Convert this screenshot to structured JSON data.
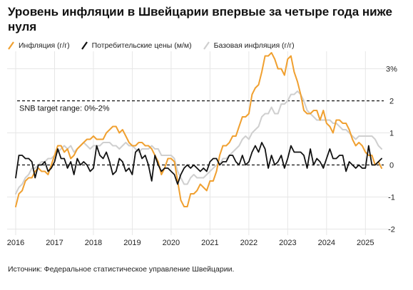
{
  "title": "Уровень инфляции в Швейцарии впервые за четыре года ниже нуля",
  "source": "Источник: Федеральное статистическое управление Швейцарии.",
  "colors": {
    "inflation": "#f0a030",
    "cpi": "#111111",
    "core": "#cfcfcf",
    "grid": "#e6e6e6",
    "zero": "#111111"
  },
  "chart_data": {
    "type": "line",
    "legend_placement": "top-left",
    "grid": true,
    "x_axis": {
      "ticks": [
        "2016",
        "2017",
        "2018",
        "2019",
        "2020",
        "2021",
        "2022",
        "2023",
        "2024",
        "2025"
      ],
      "range": [
        "2016-01",
        "2025-06"
      ]
    },
    "y_axis": {
      "position": "right",
      "range": [
        -2.1,
        3.5
      ],
      "ticks": [
        {
          "value": 3,
          "label": "3%"
        },
        {
          "value": 2,
          "label": "2"
        },
        {
          "value": 1,
          "label": "1"
        },
        {
          "value": 0,
          "label": "0"
        },
        {
          "value": -1,
          "label": "-1"
        },
        {
          "value": -2,
          "label": "-2"
        }
      ]
    },
    "annotations": [
      {
        "type": "dashed-line",
        "y": 2,
        "label": "SNB target range: 0%-2%"
      },
      {
        "type": "dashed-line",
        "y": 0
      }
    ],
    "series": [
      {
        "name": "Инфляция (г/г)",
        "start": "2016-01",
        "frequency": "monthly",
        "values": [
          -1.3,
          -0.9,
          -0.8,
          -0.5,
          -0.4,
          -0.4,
          -0.2,
          -0.1,
          -0.2,
          -0.2,
          -0.3,
          0.0,
          0.3,
          0.6,
          0.6,
          0.4,
          0.5,
          0.2,
          0.3,
          0.5,
          0.6,
          0.7,
          0.8,
          0.8,
          0.9,
          0.8,
          0.8,
          0.8,
          1.0,
          1.1,
          1.2,
          1.2,
          1.0,
          1.1,
          0.9,
          0.7,
          0.6,
          0.6,
          0.7,
          0.7,
          0.6,
          0.6,
          0.5,
          0.3,
          0.1,
          -0.3,
          -0.1,
          0.2,
          0.2,
          0.1,
          -0.5,
          -1.1,
          -1.3,
          -1.3,
          -0.9,
          -0.9,
          -0.8,
          -0.6,
          -0.7,
          -0.8,
          -0.5,
          -0.5,
          -0.2,
          0.3,
          0.6,
          0.6,
          0.7,
          0.9,
          0.9,
          1.2,
          1.5,
          1.5,
          1.6,
          2.2,
          2.4,
          2.5,
          2.9,
          3.4,
          3.4,
          3.5,
          3.3,
          3.0,
          3.0,
          2.8,
          3.3,
          3.4,
          2.9,
          2.6,
          2.2,
          1.7,
          1.6,
          1.6,
          1.7,
          1.7,
          1.4,
          1.7,
          1.3,
          1.2,
          1.0,
          1.4,
          1.4,
          1.3,
          1.3,
          1.1,
          0.8,
          0.6,
          0.7,
          0.6,
          0.4,
          0.3,
          0.3,
          0.0,
          0.1,
          -0.1
        ]
      },
      {
        "name": "Потребительские цены (м/м)",
        "start": "2016-01",
        "frequency": "monthly",
        "values": [
          -0.4,
          0.3,
          0.3,
          0.2,
          0.2,
          0.1,
          -0.4,
          0.0,
          0.0,
          0.1,
          -0.2,
          -0.1,
          0.1,
          0.5,
          0.2,
          0.2,
          -0.1,
          0.1,
          -0.3,
          0.2,
          0.0,
          0.1,
          0.0,
          -0.2,
          -0.1,
          0.6,
          0.3,
          0.2,
          0.4,
          0.1,
          -0.3,
          -0.2,
          0.2,
          0.1,
          -0.2,
          -0.1,
          -0.3,
          0.4,
          0.5,
          0.2,
          0.3,
          0.0,
          -0.5,
          0.3,
          0.0,
          -0.2,
          -0.1,
          -0.1,
          -0.2,
          -0.3,
          -0.6,
          -0.3,
          -0.1,
          0.0,
          -0.1,
          0.0,
          -0.1,
          -0.2,
          -0.1,
          -0.2,
          0.1,
          0.2,
          0.2,
          0.0,
          0.1,
          0.1,
          0.3,
          0.3,
          0.1,
          0.0,
          0.3,
          0.0,
          0.1,
          0.4,
          0.6,
          0.4,
          0.7,
          0.5,
          -0.1,
          0.3,
          0.0,
          0.1,
          0.3,
          -0.1,
          0.2,
          0.6,
          0.4,
          0.4,
          0.4,
          0.3,
          -0.1,
          0.5,
          0.0,
          0.2,
          0.1,
          -0.1,
          0.2,
          0.5,
          0.2,
          0.2,
          0.3,
          0.3,
          -0.2,
          0.1,
          0.0,
          -0.1,
          0.0,
          -0.1,
          -0.1,
          0.6,
          0.0,
          0.0,
          0.1,
          0.2
        ]
      },
      {
        "name": "Базовая инфляция (г/г)",
        "start": "2016-01",
        "frequency": "monthly",
        "values": [
          -0.9,
          -0.7,
          -0.6,
          -0.4,
          -0.3,
          -0.1,
          -0.1,
          0.0,
          0.1,
          0.1,
          0.2,
          0.2,
          0.3,
          0.4,
          0.5,
          0.6,
          0.5,
          0.6,
          0.4,
          0.5,
          0.6,
          0.7,
          0.6,
          0.5,
          0.6,
          0.6,
          0.6,
          0.7,
          0.7,
          0.7,
          0.6,
          0.6,
          0.5,
          0.6,
          0.7,
          0.6,
          0.6,
          0.5,
          0.4,
          0.5,
          0.5,
          0.5,
          0.6,
          0.5,
          0.5,
          0.3,
          0.3,
          0.3,
          0.3,
          0.2,
          -0.2,
          -0.4,
          -0.6,
          -0.6,
          -0.4,
          -0.3,
          -0.4,
          -0.4,
          -0.4,
          -0.3,
          -0.2,
          -0.1,
          0.0,
          0.0,
          0.2,
          0.2,
          0.3,
          0.4,
          0.5,
          0.6,
          0.8,
          0.9,
          0.8,
          1.0,
          1.1,
          1.2,
          1.5,
          1.6,
          1.6,
          1.8,
          1.6,
          1.6,
          1.9,
          1.9,
          2.0,
          2.2,
          2.2,
          2.3,
          2.2,
          2.0,
          1.7,
          1.6,
          1.5,
          1.4,
          1.4,
          1.4,
          1.4,
          1.4,
          1.3,
          1.3,
          1.2,
          1.1,
          1.1,
          1.0,
          0.9,
          0.8,
          0.9,
          0.9,
          0.9,
          0.9,
          0.9,
          0.8,
          0.6,
          0.5
        ]
      }
    ]
  }
}
